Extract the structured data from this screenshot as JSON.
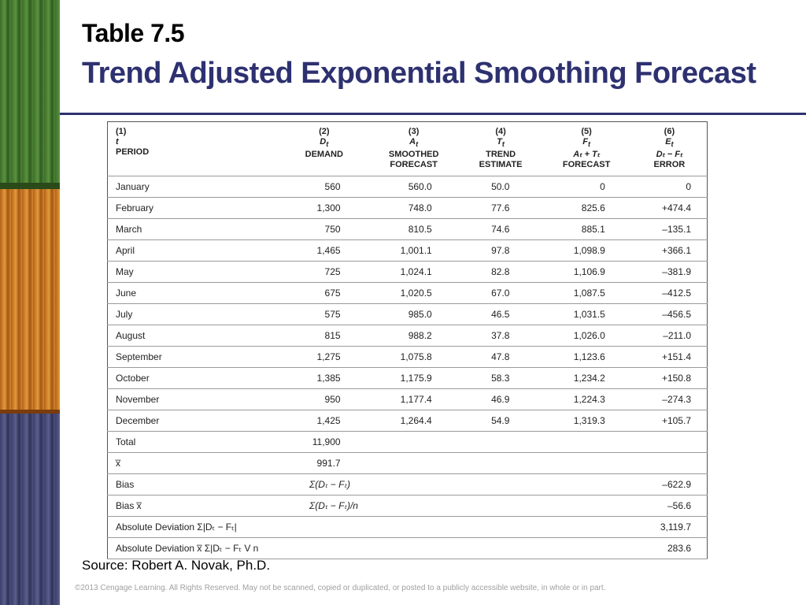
{
  "slide": {
    "title": "Table 7.5",
    "subtitle": "Trend Adjusted Exponential Smoothing Forecast",
    "source": "Source: Robert A. Novak, Ph.D.",
    "copyright": "©2013 Cengage Learning. All Rights Reserved. May not be scanned, copied or duplicated, or posted to a publicly accessible website, in whole or in part.",
    "colors": {
      "title_accent": "#2e3170",
      "rule": "#2e3170"
    }
  },
  "table": {
    "headers": [
      {
        "num": "(1)",
        "sym": "t",
        "l1": "PERIOD",
        "l2": ""
      },
      {
        "num": "(2)",
        "sym": "D",
        "sub": "t",
        "l1": "DEMAND",
        "l2": ""
      },
      {
        "num": "(3)",
        "sym": "A",
        "sub": "t",
        "l1": "SMOOTHED",
        "l2": "FORECAST"
      },
      {
        "num": "(4)",
        "sym": "T",
        "sub": "t",
        "l1": "TREND",
        "l2": "ESTIMATE"
      },
      {
        "num": "(5)",
        "sym": "F",
        "sub": "t",
        "l1": "Aₜ + Tₜ",
        "l2": "FORECAST"
      },
      {
        "num": "(6)",
        "sym": "E",
        "sub": "t",
        "l1": "Dₜ − Fₜ",
        "l2": "ERROR"
      }
    ],
    "rows": [
      [
        "January",
        "560",
        "560.0",
        "50.0",
        "0",
        "0"
      ],
      [
        "February",
        "1,300",
        "748.0",
        "77.6",
        "825.6",
        "+474.4"
      ],
      [
        "March",
        "750",
        "810.5",
        "74.6",
        "885.1",
        "–135.1"
      ],
      [
        "April",
        "1,465",
        "1,001.1",
        "97.8",
        "1,098.9",
        "+366.1"
      ],
      [
        "May",
        "725",
        "1,024.1",
        "82.8",
        "1,106.9",
        "–381.9"
      ],
      [
        "June",
        "675",
        "1,020.5",
        "67.0",
        "1,087.5",
        "–412.5"
      ],
      [
        "July",
        "575",
        "985.0",
        "46.5",
        "1,031.5",
        "–456.5"
      ],
      [
        "August",
        "815",
        "988.2",
        "37.8",
        "1,026.0",
        "–211.0"
      ],
      [
        "September",
        "1,275",
        "1,075.8",
        "47.8",
        "1,123.6",
        "+151.4"
      ],
      [
        "October",
        "1,385",
        "1,175.9",
        "58.3",
        "1,234.2",
        "+150.8"
      ],
      [
        "November",
        "950",
        "1,177.4",
        "46.9",
        "1,224.3",
        "–274.3"
      ],
      [
        "December",
        "1,425",
        "1,264.4",
        "54.9",
        "1,319.3",
        "+105.7"
      ]
    ],
    "summary": {
      "total_label": "Total",
      "total_value": "11,900",
      "mean_label": "x̅",
      "mean_value": "991.7",
      "bias_label": "Bias",
      "bias_formula": "Σ(Dₜ − Fₜ)",
      "bias_value": "–622.9",
      "biasbar_label": "Bias x̅",
      "biasbar_formula": "Σ(Dₜ − Fₜ)/n",
      "biasbar_value": "–56.6",
      "absdev_label": "Absolute Deviation Σ|Dₜ − Fₜ|",
      "absdev_value": "3,119.7",
      "absdevbar_label": "Absolute Deviation x̅ Σ|Dₜ − Fₜ V n",
      "absdevbar_value": "283.6"
    }
  }
}
